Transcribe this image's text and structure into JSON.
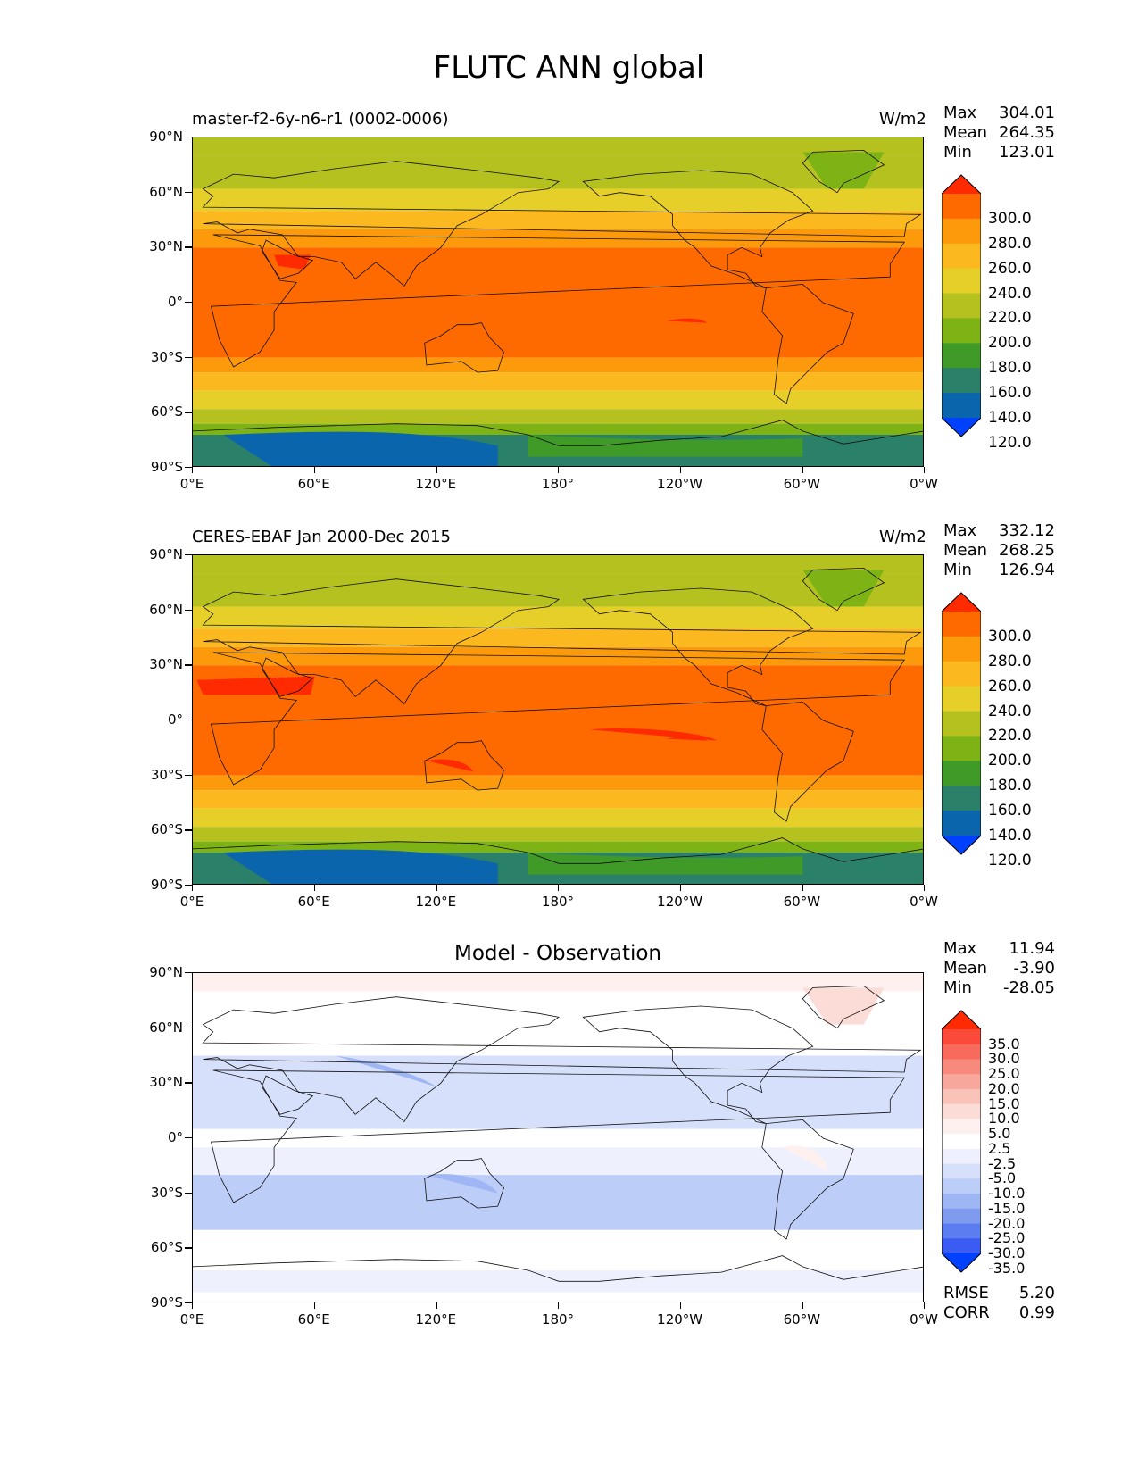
{
  "title": "FLUTC ANN global",
  "xticks": [
    "0°E",
    "60°E",
    "120°E",
    "180°",
    "120°W",
    "60°W",
    "0°W"
  ],
  "yticks": [
    "90°N",
    "60°N",
    "30°N",
    "0°",
    "30°S",
    "60°S",
    "90°S"
  ],
  "panels": [
    {
      "id": "test",
      "left_title": "master-f2-6y-n6-r1 (0002-0006)",
      "units": "W/m2",
      "stats": {
        "max_label": "Max",
        "max": "304.01",
        "mean_label": "Mean",
        "mean": "264.35",
        "min_label": "Min",
        "min": "123.01"
      },
      "colorbar": {
        "labels": [
          "300.0",
          "280.0",
          "260.0",
          "240.0",
          "220.0",
          "200.0",
          "180.0",
          "160.0",
          "140.0",
          "120.0"
        ],
        "colors": [
          "#ff2a00",
          "#ff6a00",
          "#fd9a0c",
          "#fbb81f",
          "#e6cf28",
          "#b5c11f",
          "#7db315",
          "#3f9a27",
          "#2b8069",
          "#0b65ad",
          "#0041ff"
        ]
      }
    },
    {
      "id": "reference",
      "left_title": "CERES-EBAF Jan 2000-Dec 2015",
      "units": "W/m2",
      "stats": {
        "max_label": "Max",
        "max": "332.12",
        "mean_label": "Mean",
        "mean": "268.25",
        "min_label": "Min",
        "min": "126.94"
      },
      "colorbar": {
        "labels": [
          "300.0",
          "280.0",
          "260.0",
          "240.0",
          "220.0",
          "200.0",
          "180.0",
          "160.0",
          "140.0",
          "120.0"
        ],
        "colors": [
          "#ff2a00",
          "#ff6a00",
          "#fd9a0c",
          "#fbb81f",
          "#e6cf28",
          "#b5c11f",
          "#7db315",
          "#3f9a27",
          "#2b8069",
          "#0b65ad",
          "#0041ff"
        ]
      }
    },
    {
      "id": "diff",
      "center_title": "Model - Observation",
      "stats": {
        "max_label": "Max",
        "max": "11.94",
        "mean_label": "Mean",
        "mean": "-3.90",
        "min_label": "Min",
        "min": "-28.05"
      },
      "extra_stats": {
        "rmse_label": "RMSE",
        "rmse": "5.20",
        "corr_label": "CORR",
        "corr": "0.99"
      },
      "colorbar": {
        "labels": [
          "35.0",
          "30.0",
          "25.0",
          "20.0",
          "15.0",
          "10.0",
          "5.0",
          "2.5",
          "-2.5",
          "-5.0",
          "-10.0",
          "-15.0",
          "-20.0",
          "-25.0",
          "-30.0",
          "-35.0"
        ],
        "colors": [
          "#ff2a00",
          "#fb4a3a",
          "#f86a5c",
          "#f78a7c",
          "#f7a79b",
          "#f9c3ba",
          "#fbdcd6",
          "#fdf0ee",
          "#ffffff",
          "#eef1fd",
          "#d6e0fb",
          "#bccdf8",
          "#9fb6f4",
          "#7f9bf0",
          "#5c7df0",
          "#3a5cf3",
          "#0041ff"
        ]
      }
    }
  ]
}
